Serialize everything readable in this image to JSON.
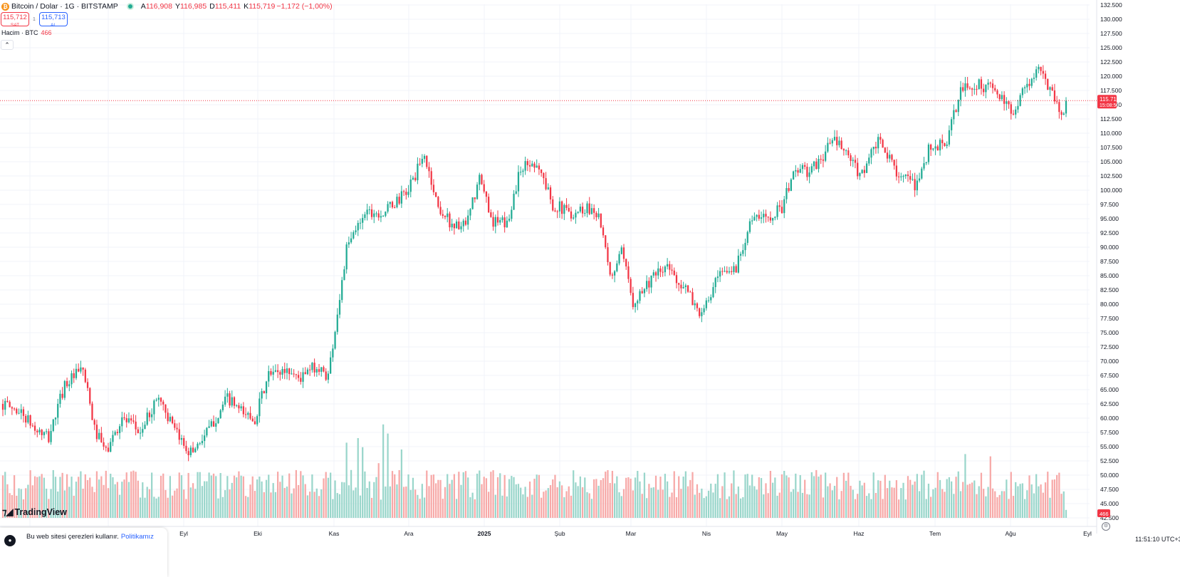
{
  "header": {
    "symbol_title": "Bitcoin / Dolar · 1G · BITSTAMP",
    "ohlc": [
      {
        "k": "A",
        "v": "116,908"
      },
      {
        "k": "Y",
        "v": "116,985"
      },
      {
        "k": "D",
        "v": "115,411"
      },
      {
        "k": "K",
        "v": "115,719"
      }
    ],
    "change": "−1,172 (−1,00%)"
  },
  "trade": {
    "sell_price": "115,712",
    "sell_label": "SAT",
    "spread": "1",
    "buy_price": "115,713",
    "buy_label": "AL"
  },
  "volume_legend": {
    "label": "Hacim · BTC",
    "value": "466"
  },
  "logo": "TradingView",
  "cookie": {
    "text": "Bu web sitesi çerezleri kullanır.",
    "link": "Politikamız"
  },
  "clock": "11:51:10 UTC+3",
  "colors": {
    "up": "#22ab94",
    "down": "#f23645",
    "up_volume": "#9ad6cb",
    "down_volume": "#f7a9a8"
  },
  "chart_data": {
    "type": "candlestick",
    "y_ticks": [
      "132.500",
      "130.000",
      "127.500",
      "125.000",
      "122.500",
      "120.000",
      "117.500",
      "115.000",
      "112.500",
      "110.000",
      "107.500",
      "105.000",
      "102.500",
      "100.000",
      "97.500",
      "95.000",
      "92.500",
      "90.000",
      "87.500",
      "85.000",
      "82.500",
      "80.000",
      "77.500",
      "75.000",
      "72.500",
      "70.000",
      "67.500",
      "65.000",
      "62.500",
      "60.000",
      "57.500",
      "55.000",
      "52.500",
      "50.000",
      "47.500",
      "45.000",
      "42.500"
    ],
    "ylim": [
      42500,
      132500
    ],
    "x_ticks": [
      "Tem",
      "Ağu",
      "Eyl",
      "Eki",
      "Kas",
      "Ara",
      "2025",
      "Şub",
      "Mar",
      "Nis",
      "May",
      "Haz",
      "Tem",
      "Ağu",
      "Eyl"
    ],
    "last_price_label": "115.719",
    "last_price_countdown": "15:08:50",
    "last_price": 115719,
    "volume_last_label": "466",
    "path": [
      {
        "i": 0,
        "p": 62500
      },
      {
        "i": 8,
        "p": 61000
      },
      {
        "i": 14,
        "p": 58000
      },
      {
        "i": 20,
        "p": 56500
      },
      {
        "i": 27,
        "p": 66000
      },
      {
        "i": 35,
        "p": 68500
      },
      {
        "i": 40,
        "p": 58000
      },
      {
        "i": 45,
        "p": 54000
      },
      {
        "i": 52,
        "p": 60000
      },
      {
        "i": 60,
        "p": 57500
      },
      {
        "i": 68,
        "p": 64000
      },
      {
        "i": 75,
        "p": 57500
      },
      {
        "i": 82,
        "p": 54000
      },
      {
        "i": 90,
        "p": 58000
      },
      {
        "i": 98,
        "p": 63500
      },
      {
        "i": 104,
        "p": 61000
      },
      {
        "i": 110,
        "p": 60000
      },
      {
        "i": 116,
        "p": 67500
      },
      {
        "i": 124,
        "p": 68500
      },
      {
        "i": 130,
        "p": 67000
      },
      {
        "i": 136,
        "p": 69000
      },
      {
        "i": 142,
        "p": 67500
      },
      {
        "i": 150,
        "p": 89500
      },
      {
        "i": 158,
        "p": 96500
      },
      {
        "i": 166,
        "p": 96000
      },
      {
        "i": 176,
        "p": 99500
      },
      {
        "i": 184,
        "p": 106000
      },
      {
        "i": 190,
        "p": 97000
      },
      {
        "i": 196,
        "p": 94000
      },
      {
        "i": 202,
        "p": 93500
      },
      {
        "i": 208,
        "p": 102000
      },
      {
        "i": 214,
        "p": 94500
      },
      {
        "i": 220,
        "p": 94000
      },
      {
        "i": 226,
        "p": 104000
      },
      {
        "i": 233,
        "p": 105000
      },
      {
        "i": 240,
        "p": 97500
      },
      {
        "i": 248,
        "p": 96000
      },
      {
        "i": 255,
        "p": 97000
      },
      {
        "i": 260,
        "p": 96000
      },
      {
        "i": 265,
        "p": 84500
      },
      {
        "i": 270,
        "p": 89000
      },
      {
        "i": 275,
        "p": 80500
      },
      {
        "i": 282,
        "p": 84000
      },
      {
        "i": 290,
        "p": 86500
      },
      {
        "i": 298,
        "p": 82500
      },
      {
        "i": 305,
        "p": 78000
      },
      {
        "i": 312,
        "p": 84500
      },
      {
        "i": 320,
        "p": 86500
      },
      {
        "i": 326,
        "p": 94500
      },
      {
        "i": 334,
        "p": 95500
      },
      {
        "i": 340,
        "p": 97000
      },
      {
        "i": 346,
        "p": 104000
      },
      {
        "i": 352,
        "p": 103000
      },
      {
        "i": 358,
        "p": 106000
      },
      {
        "i": 362,
        "p": 109000
      },
      {
        "i": 368,
        "p": 106500
      },
      {
        "i": 374,
        "p": 102500
      },
      {
        "i": 382,
        "p": 108500
      },
      {
        "i": 390,
        "p": 103500
      },
      {
        "i": 398,
        "p": 100500
      },
      {
        "i": 404,
        "p": 107000
      },
      {
        "i": 412,
        "p": 108500
      },
      {
        "i": 418,
        "p": 117500
      },
      {
        "i": 424,
        "p": 118500
      },
      {
        "i": 432,
        "p": 118000
      },
      {
        "i": 440,
        "p": 113500
      },
      {
        "i": 446,
        "p": 118000
      },
      {
        "i": 452,
        "p": 121000
      },
      {
        "i": 458,
        "p": 117500
      },
      {
        "i": 462,
        "p": 113000
      },
      {
        "i": 464,
        "p": 115719
      }
    ],
    "volume_spikes": [
      {
        "i": 150,
        "v": 3.3
      },
      {
        "i": 152,
        "v": 2.1
      },
      {
        "i": 155,
        "v": 3.5
      },
      {
        "i": 157,
        "v": 3.1
      },
      {
        "i": 160,
        "v": 1.6
      },
      {
        "i": 164,
        "v": 2.4
      },
      {
        "i": 166,
        "v": 4.1
      },
      {
        "i": 168,
        "v": 3.7
      },
      {
        "i": 174,
        "v": 3.0
      },
      {
        "i": 420,
        "v": 2.8
      },
      {
        "i": 431,
        "v": 2.7
      }
    ]
  }
}
